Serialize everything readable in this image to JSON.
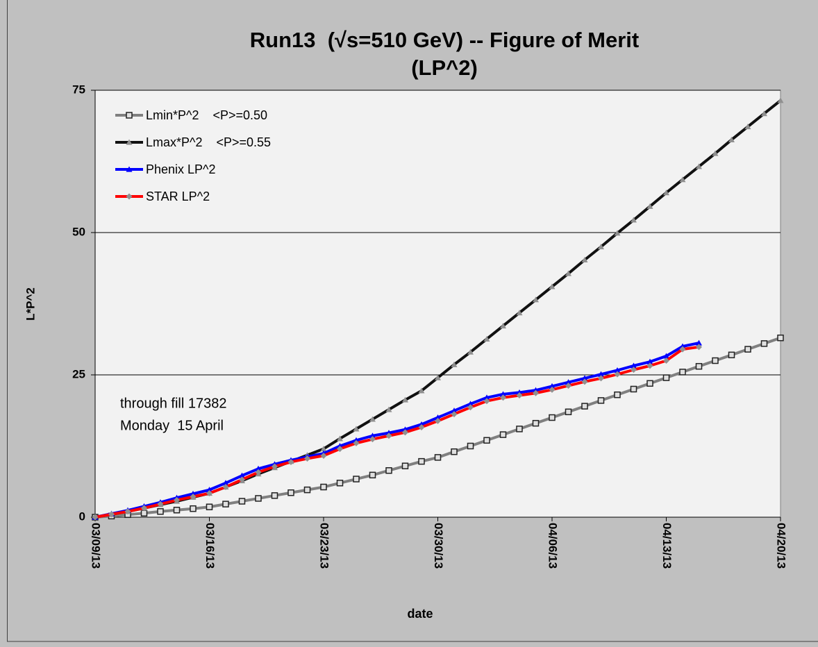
{
  "chart_data": {
    "type": "line",
    "title": [
      "Run13  (√s=510 GeV) -- Figure of Merit",
      "(LP^2)"
    ],
    "x_label": "date",
    "y_label": "L*P^2",
    "annotations": [
      "through fill 17382",
      "Monday  15 April"
    ],
    "x": [
      "2013-03-09",
      "2013-03-10",
      "2013-03-11",
      "2013-03-12",
      "2013-03-13",
      "2013-03-14",
      "2013-03-15",
      "2013-03-16",
      "2013-03-17",
      "2013-03-18",
      "2013-03-19",
      "2013-03-20",
      "2013-03-21",
      "2013-03-22",
      "2013-03-23",
      "2013-03-24",
      "2013-03-25",
      "2013-03-26",
      "2013-03-27",
      "2013-03-28",
      "2013-03-29",
      "2013-03-30",
      "2013-03-31",
      "2013-04-01",
      "2013-04-02",
      "2013-04-03",
      "2013-04-04",
      "2013-04-05",
      "2013-04-06",
      "2013-04-07",
      "2013-04-08",
      "2013-04-09",
      "2013-04-10",
      "2013-04-11",
      "2013-04-12",
      "2013-04-13",
      "2013-04-14",
      "2013-04-15",
      "2013-04-16",
      "2013-04-17",
      "2013-04-18",
      "2013-04-19",
      "2013-04-20"
    ],
    "series": [
      {
        "name": "Lmin*P^2    <P>=0.50",
        "color": "#808080",
        "marker": "square",
        "marker_color": "#222222",
        "values": [
          0,
          0.2,
          0.45,
          0.7,
          1.0,
          1.25,
          1.5,
          1.8,
          2.3,
          2.8,
          3.3,
          3.8,
          4.3,
          4.8,
          5.3,
          6.0,
          6.7,
          7.4,
          8.2,
          9.0,
          9.8,
          10.5,
          11.5,
          12.5,
          13.5,
          14.5,
          15.5,
          16.5,
          17.5,
          18.5,
          19.5,
          20.5,
          21.5,
          22.5,
          23.5,
          24.5,
          25.5,
          26.5,
          27.5,
          28.5,
          29.5,
          30.5,
          31.5
        ]
      },
      {
        "name": "Lmax*P^2    <P>=0.55",
        "color": "#111111",
        "marker": "triangle",
        "marker_color": "#909090",
        "values": [
          0,
          0.5,
          1.0,
          1.6,
          2.2,
          2.8,
          3.5,
          4.2,
          5.3,
          6.4,
          7.6,
          8.7,
          9.8,
          10.9,
          12.0,
          13.8,
          15.5,
          17.2,
          18.9,
          20.6,
          22.2,
          24.5,
          26.8,
          29.0,
          31.3,
          33.6,
          35.9,
          38.2,
          40.5,
          42.8,
          45.2,
          47.5,
          49.9,
          52.2,
          54.6,
          57.0,
          59.3,
          61.6,
          63.9,
          66.3,
          68.6,
          70.9,
          73.2
        ]
      },
      {
        "name": "Phenix LP^2",
        "color": "#0000ff",
        "marker": "triangle",
        "marker_color": "#0000ff",
        "values": [
          0,
          0.6,
          1.2,
          1.9,
          2.6,
          3.4,
          4.1,
          4.8,
          6.0,
          7.3,
          8.5,
          9.3,
          10.0,
          10.6,
          11.2,
          12.5,
          13.5,
          14.3,
          14.8,
          15.4,
          16.3,
          17.5,
          18.7,
          19.9,
          21.0,
          21.6,
          21.9,
          22.3,
          23.0,
          23.7,
          24.4,
          25.1,
          25.8,
          26.6,
          27.3,
          28.3,
          30.0,
          30.6,
          null,
          null,
          null,
          null,
          null
        ]
      },
      {
        "name": "STAR LP^2",
        "color": "#ff0000",
        "marker": "diamond",
        "marker_color": "#909090",
        "values": [
          0,
          0.5,
          1.0,
          1.6,
          2.3,
          3.0,
          3.6,
          4.2,
          5.3,
          6.6,
          7.9,
          8.9,
          9.7,
          10.3,
          10.8,
          12.0,
          13.0,
          13.7,
          14.3,
          14.9,
          15.8,
          16.9,
          18.1,
          19.3,
          20.4,
          21.0,
          21.4,
          21.8,
          22.4,
          23.1,
          23.8,
          24.4,
          25.1,
          25.9,
          26.6,
          27.5,
          29.5,
          29.9,
          null,
          null,
          null,
          null,
          null
        ]
      }
    ],
    "xlim": [
      "2013-03-09",
      "2013-04-20"
    ],
    "xticks": [
      {
        "value": "2013-03-09",
        "label": "03/09/13"
      },
      {
        "value": "2013-03-16",
        "label": "03/16/13"
      },
      {
        "value": "2013-03-23",
        "label": "03/23/13"
      },
      {
        "value": "2013-03-30",
        "label": "03/30/13"
      },
      {
        "value": "2013-04-06",
        "label": "04/06/13"
      },
      {
        "value": "2013-04-13",
        "label": "04/13/13"
      },
      {
        "value": "2013-04-20",
        "label": "04/20/13"
      }
    ],
    "ylim": [
      0,
      75
    ],
    "yticks": [
      0,
      25,
      50,
      75
    ],
    "grid": true,
    "legend": "upper left"
  }
}
